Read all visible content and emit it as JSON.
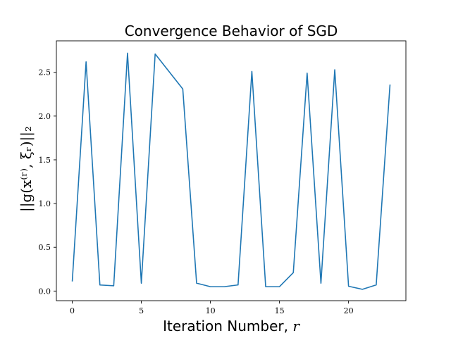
{
  "chart_data": {
    "type": "line",
    "title": "Convergence Behavior of SGD",
    "xlabel": "Iteration Number, ",
    "xlabel_var": "r",
    "ylabel": "||g(x⁽ʳ⁾, ξᵣ)||₂",
    "x": [
      0,
      1,
      2,
      3,
      4,
      5,
      6,
      7,
      8,
      9,
      10,
      11,
      12,
      13,
      14,
      15,
      16,
      17,
      18,
      19,
      20,
      21,
      22,
      23
    ],
    "series": [
      {
        "values": [
          0.11,
          2.62,
          0.07,
          0.06,
          2.72,
          0.09,
          2.71,
          2.51,
          2.31,
          0.09,
          0.05,
          0.05,
          0.07,
          2.51,
          0.05,
          0.05,
          0.21,
          2.49,
          0.09,
          2.53,
          0.055,
          0.02,
          0.07,
          2.36
        ],
        "color": "#1f77b4"
      }
    ],
    "xlim": [
      -1.15,
      24.15
    ],
    "ylim": [
      -0.11,
      2.86
    ],
    "xticks": [
      "0",
      "5",
      "10",
      "15",
      "20"
    ],
    "yticks": [
      "0.0",
      "0.5",
      "1.0",
      "1.5",
      "2.0",
      "2.5"
    ],
    "grid": false,
    "legend": "none"
  }
}
